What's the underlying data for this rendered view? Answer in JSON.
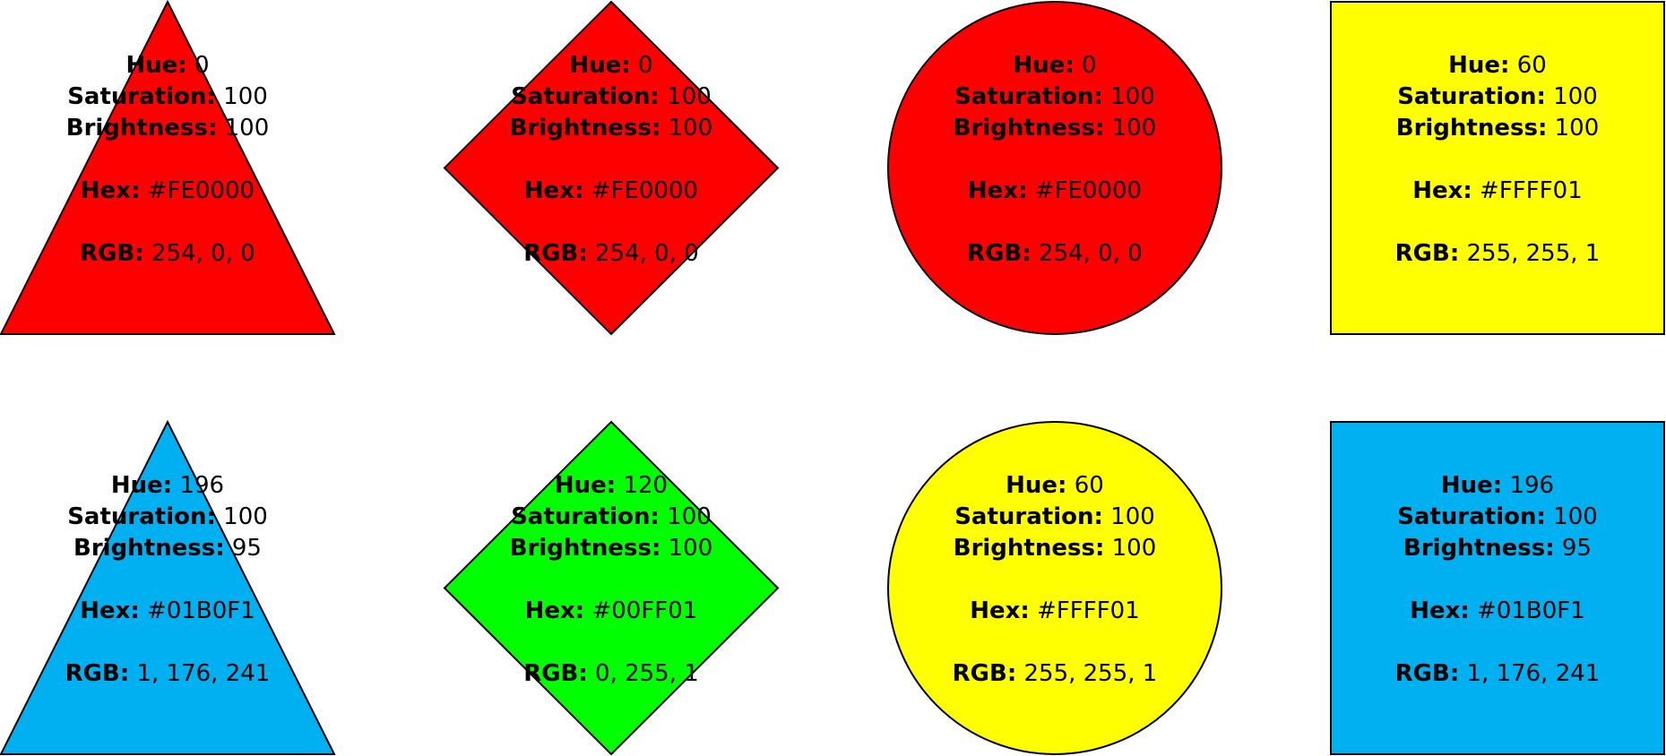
{
  "labels": {
    "hue": "Hue:",
    "saturation": "Saturation:",
    "brightness": "Brightness:",
    "hex": "Hex:",
    "rgb": "RGB:"
  },
  "shapes": [
    {
      "shape": "triangle",
      "fill": "#FE0000",
      "hue": "0",
      "saturation": "100",
      "brightness": "100",
      "hex": "#FE0000",
      "rgb": "254, 0, 0"
    },
    {
      "shape": "diamond",
      "fill": "#FE0000",
      "hue": "0",
      "saturation": "100",
      "brightness": "100",
      "hex": "#FE0000",
      "rgb": "254, 0, 0"
    },
    {
      "shape": "circle",
      "fill": "#FE0000",
      "hue": "0",
      "saturation": "100",
      "brightness": "100",
      "hex": "#FE0000",
      "rgb": "254, 0, 0"
    },
    {
      "shape": "square",
      "fill": "#FFFF01",
      "hue": "60",
      "saturation": "100",
      "brightness": "100",
      "hex": "#FFFF01",
      "rgb": "255, 255, 1"
    },
    {
      "shape": "triangle",
      "fill": "#01B0F1",
      "hue": "196",
      "saturation": "100",
      "brightness": "95",
      "hex": "#01B0F1",
      "rgb": "1, 176, 241"
    },
    {
      "shape": "diamond",
      "fill": "#00FF01",
      "hue": "120",
      "saturation": "100",
      "brightness": "100",
      "hex": "#00FF01",
      "rgb": "0, 255, 1"
    },
    {
      "shape": "circle",
      "fill": "#FFFF01",
      "hue": "60",
      "saturation": "100",
      "brightness": "100",
      "hex": "#FFFF01",
      "rgb": "255, 255, 1"
    },
    {
      "shape": "square",
      "fill": "#01B0F1",
      "hue": "196",
      "saturation": "100",
      "brightness": "95",
      "hex": "#01B0F1",
      "rgb": "1, 176, 241"
    }
  ]
}
